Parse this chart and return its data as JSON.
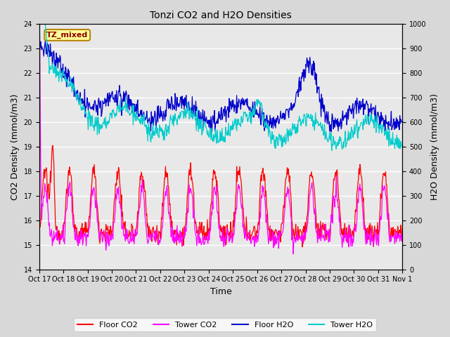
{
  "title": "Tonzi CO2 and H2O Densities",
  "xlabel": "Time",
  "ylabel_left": "CO2 Density (mmol/m3)",
  "ylabel_right": "H2O Density (mmol/m3)",
  "ylim_left": [
    14.0,
    24.0
  ],
  "ylim_right": [
    0,
    1000
  ],
  "yticks_left": [
    14.0,
    15.0,
    16.0,
    17.0,
    18.0,
    19.0,
    20.0,
    21.0,
    22.0,
    23.0,
    24.0
  ],
  "yticks_right": [
    0,
    100,
    200,
    300,
    400,
    500,
    600,
    700,
    800,
    900,
    1000
  ],
  "xtick_labels": [
    "Oct 17",
    "Oct 18",
    "Oct 19",
    "Oct 20",
    "Oct 21",
    "Oct 22",
    "Oct 23",
    "Oct 24",
    "Oct 25",
    "Oct 26",
    "Oct 27",
    "Oct 28",
    "Oct 29",
    "Oct 30",
    "Oct 31",
    "Nov 1"
  ],
  "annotation_text": "TZ_mixed",
  "annotation_color": "#8B0000",
  "annotation_bg": "#FFFF99",
  "annotation_border": "#B8860B",
  "colors": {
    "floor_co2": "#FF0000",
    "tower_co2": "#FF00FF",
    "floor_h2o": "#0000CC",
    "tower_h2o": "#00CCCC"
  },
  "legend_labels": [
    "Floor CO2",
    "Tower CO2",
    "Floor H2O",
    "Tower H2O"
  ],
  "background_color": "#D8D8D8",
  "plot_bg_color": "#E8E8E8"
}
